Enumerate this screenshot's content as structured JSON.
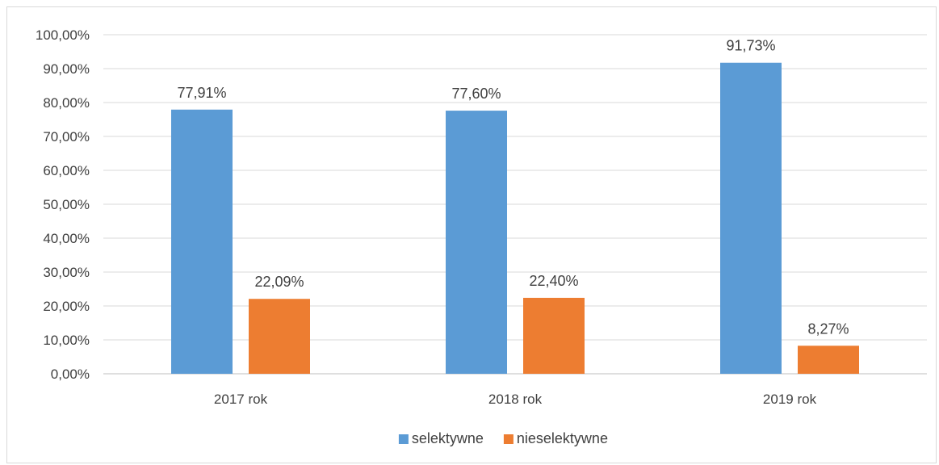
{
  "chart_data": {
    "type": "bar",
    "title": "",
    "xlabel": "",
    "ylabel": "",
    "categories": [
      "2017 rok",
      "2018 rok",
      "2019 rok"
    ],
    "series": [
      {
        "name": "selektywne",
        "values": [
          77.91,
          77.6,
          91.73
        ],
        "labels": [
          "77,91%",
          "77,60%",
          "91,73%"
        ],
        "color": "#5b9bd5"
      },
      {
        "name": "nieselektywne",
        "values": [
          22.09,
          22.4,
          8.27
        ],
        "labels": [
          "22,09%",
          "22,40%",
          "8,27%"
        ],
        "color": "#ed7d31"
      }
    ],
    "ylim": [
      0,
      100
    ],
    "y_ticks": [
      0,
      10,
      20,
      30,
      40,
      50,
      60,
      70,
      80,
      90,
      100
    ],
    "y_tick_labels": [
      "0,00%",
      "10,00%",
      "20,00%",
      "30,00%",
      "40,00%",
      "50,00%",
      "60,00%",
      "70,00%",
      "80,00%",
      "90,00%",
      "100,00%"
    ],
    "grid": true,
    "legend_position": "bottom"
  }
}
